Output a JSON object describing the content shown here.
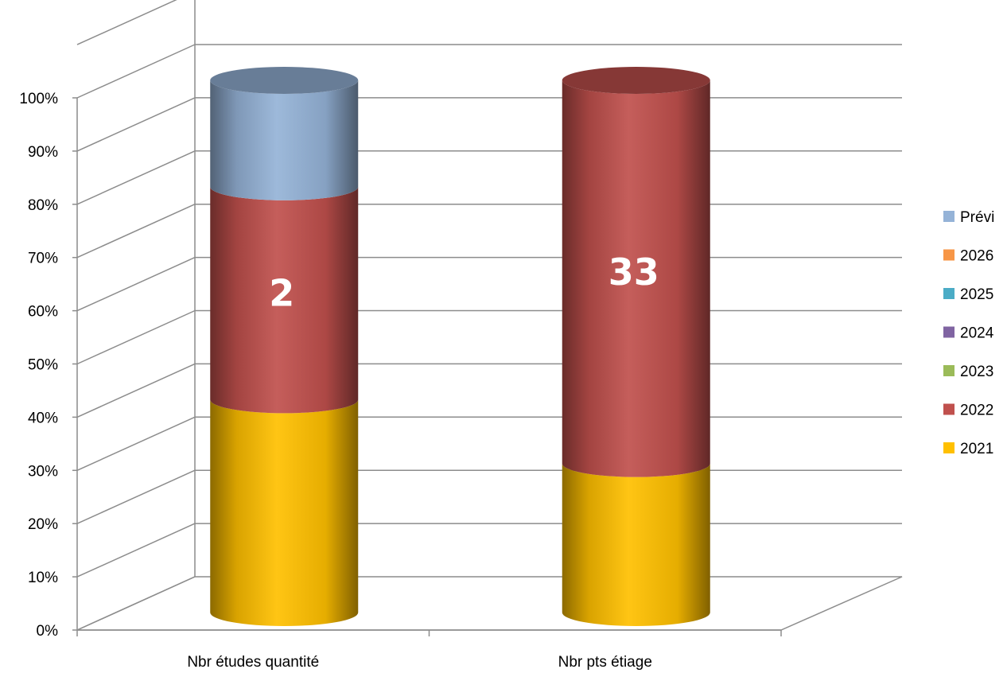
{
  "chart_data": {
    "type": "bar",
    "subtype": "stacked-100-percent-3d-cylinder",
    "title": "",
    "xlabel": "",
    "ylabel": "",
    "ylim": [
      0,
      100
    ],
    "y_ticks": [
      "0%",
      "10%",
      "20%",
      "30%",
      "40%",
      "50%",
      "60%",
      "70%",
      "80%",
      "90%",
      "100%"
    ],
    "grid": true,
    "legend_position": "right",
    "categories": [
      "Nbr études quantité",
      "Nbr pts étiage"
    ],
    "series": [
      {
        "name": "2021",
        "color": "#FFC000",
        "values": [
          40,
          28
        ]
      },
      {
        "name": "2022",
        "color": "#C0504D",
        "values": [
          40,
          72
        ]
      },
      {
        "name": "2023",
        "color": "#9BBB59",
        "values": [
          0,
          0
        ]
      },
      {
        "name": "2024",
        "color": "#8064A2",
        "values": [
          0,
          0
        ]
      },
      {
        "name": "2025",
        "color": "#4BACC6",
        "values": [
          0,
          0
        ]
      },
      {
        "name": "2026",
        "color": "#F79646",
        "values": [
          0,
          0
        ]
      },
      {
        "name": "Prévi",
        "color": "#95B3D7",
        "values": [
          20,
          0
        ]
      }
    ],
    "legend_order": [
      "Prévi",
      "2026",
      "2025",
      "2024",
      "2023",
      "2022",
      "2021"
    ],
    "data_labels": [
      {
        "category": "Nbr études quantité",
        "series": "2022",
        "text": "2"
      },
      {
        "category": "Nbr pts étiage",
        "series": "2022",
        "text": "33"
      }
    ]
  }
}
